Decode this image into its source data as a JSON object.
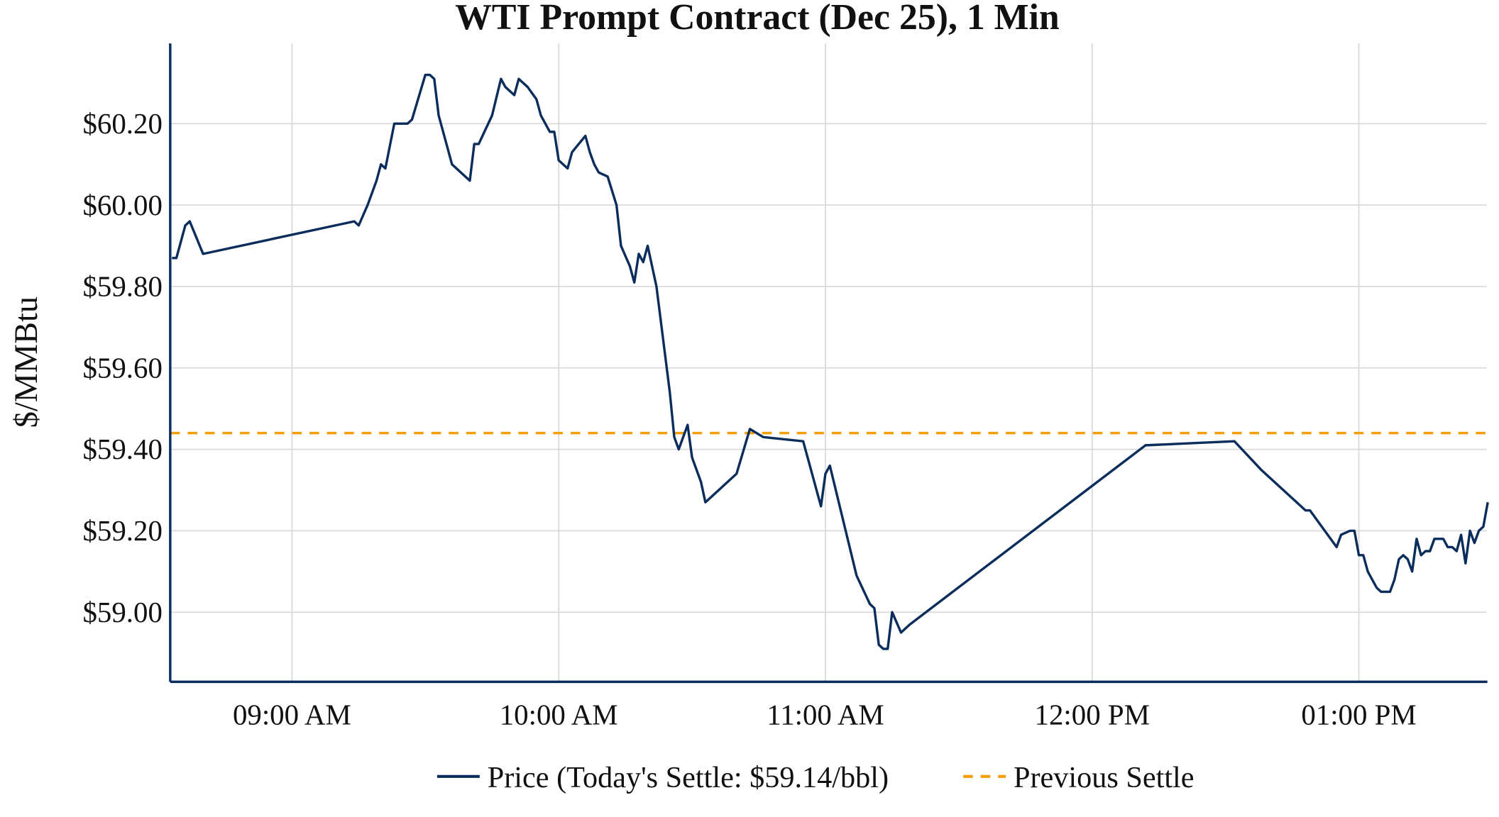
{
  "chart_data": {
    "type": "line",
    "title": "WTI Prompt Contract (Dec 25), 1 Min",
    "xlabel": "",
    "ylabel": "$/MMBtu",
    "x_range": [
      "08:33",
      "13:29"
    ],
    "ylim": [
      58.83,
      60.4
    ],
    "grid": true,
    "legend_placement": "bottom-center",
    "x_ticks": [
      {
        "time": "09:00",
        "label": "09:00 AM"
      },
      {
        "time": "10:00",
        "label": "10:00 AM"
      },
      {
        "time": "11:00",
        "label": "11:00 AM"
      },
      {
        "time": "12:00",
        "label": "12:00 PM"
      },
      {
        "time": "13:00",
        "label": "01:00 PM"
      }
    ],
    "y_ticks": [
      {
        "value": 59.0,
        "label": "$59.00"
      },
      {
        "value": 59.2,
        "label": "$59.20"
      },
      {
        "value": 59.4,
        "label": "$59.40"
      },
      {
        "value": 59.6,
        "label": "$59.60"
      },
      {
        "value": 59.8,
        "label": "$59.80"
      },
      {
        "value": 60.0,
        "label": "$60.00"
      },
      {
        "value": 60.2,
        "label": "$60.20"
      }
    ],
    "series": [
      {
        "name": "Price (Today's Settle: $59.14/bbl)",
        "color": "#0b2d5b",
        "style": "solid",
        "points": [
          [
            "08:33",
            59.87
          ],
          [
            "08:34",
            59.87
          ],
          [
            "08:36",
            59.95
          ],
          [
            "08:37",
            59.96
          ],
          [
            "08:40",
            59.88
          ],
          [
            "09:14",
            59.96
          ],
          [
            "09:15",
            59.95
          ],
          [
            "09:17",
            60.0
          ],
          [
            "09:19",
            60.06
          ],
          [
            "09:20",
            60.1
          ],
          [
            "09:21",
            60.09
          ],
          [
            "09:23",
            60.2
          ],
          [
            "09:26",
            60.2
          ],
          [
            "09:27",
            60.21
          ],
          [
            "09:30",
            60.32
          ],
          [
            "09:31",
            60.32
          ],
          [
            "09:32",
            60.31
          ],
          [
            "09:33",
            60.22
          ],
          [
            "09:36",
            60.1
          ],
          [
            "09:40",
            60.06
          ],
          [
            "09:41",
            60.15
          ],
          [
            "09:42",
            60.15
          ],
          [
            "09:45",
            60.22
          ],
          [
            "09:47",
            60.31
          ],
          [
            "09:48",
            60.29
          ],
          [
            "09:50",
            60.27
          ],
          [
            "09:51",
            60.31
          ],
          [
            "09:53",
            60.29
          ],
          [
            "09:55",
            60.26
          ],
          [
            "09:56",
            60.22
          ],
          [
            "09:58",
            60.18
          ],
          [
            "09:59",
            60.18
          ],
          [
            "10:00",
            60.11
          ],
          [
            "10:02",
            60.09
          ],
          [
            "10:03",
            60.13
          ],
          [
            "10:06",
            60.17
          ],
          [
            "10:07",
            60.13
          ],
          [
            "10:08",
            60.1
          ],
          [
            "10:09",
            60.08
          ],
          [
            "10:11",
            60.07
          ],
          [
            "10:13",
            60.0
          ],
          [
            "10:14",
            59.9
          ],
          [
            "10:16",
            59.85
          ],
          [
            "10:17",
            59.81
          ],
          [
            "10:18",
            59.88
          ],
          [
            "10:19",
            59.86
          ],
          [
            "10:20",
            59.9
          ],
          [
            "10:22",
            59.8
          ],
          [
            "10:25",
            59.54
          ],
          [
            "10:26",
            59.43
          ],
          [
            "10:27",
            59.4
          ],
          [
            "10:29",
            59.46
          ],
          [
            "10:30",
            59.38
          ],
          [
            "10:32",
            59.32
          ],
          [
            "10:33",
            59.27
          ],
          [
            "10:40",
            59.34
          ],
          [
            "10:43",
            59.45
          ],
          [
            "10:46",
            59.43
          ],
          [
            "10:55",
            59.42
          ],
          [
            "10:59",
            59.26
          ],
          [
            "11:00",
            59.34
          ],
          [
            "11:01",
            59.36
          ],
          [
            "11:07",
            59.09
          ],
          [
            "11:10",
            59.02
          ],
          [
            "11:11",
            59.01
          ],
          [
            "11:12",
            58.92
          ],
          [
            "11:13",
            58.91
          ],
          [
            "11:14",
            58.91
          ],
          [
            "11:15",
            59.0
          ],
          [
            "11:17",
            58.95
          ],
          [
            "11:19",
            58.97
          ],
          [
            "12:12",
            59.41
          ],
          [
            "12:32",
            59.42
          ],
          [
            "12:38",
            59.35
          ],
          [
            "12:48",
            59.25
          ],
          [
            "12:49",
            59.25
          ],
          [
            "12:55",
            59.16
          ],
          [
            "12:56",
            59.19
          ],
          [
            "12:58",
            59.2
          ],
          [
            "12:59",
            59.2
          ],
          [
            "13:00",
            59.14
          ],
          [
            "13:01",
            59.14
          ],
          [
            "13:02",
            59.1
          ],
          [
            "13:04",
            59.06
          ],
          [
            "13:05",
            59.05
          ],
          [
            "13:07",
            59.05
          ],
          [
            "13:08",
            59.08
          ],
          [
            "13:09",
            59.13
          ],
          [
            "13:10",
            59.14
          ],
          [
            "13:11",
            59.13
          ],
          [
            "13:12",
            59.1
          ],
          [
            "13:13",
            59.18
          ],
          [
            "13:14",
            59.14
          ],
          [
            "13:15",
            59.15
          ],
          [
            "13:16",
            59.15
          ],
          [
            "13:17",
            59.18
          ],
          [
            "13:19",
            59.18
          ],
          [
            "13:20",
            59.16
          ],
          [
            "13:21",
            59.16
          ],
          [
            "13:22",
            59.15
          ],
          [
            "13:23",
            59.19
          ],
          [
            "13:24",
            59.12
          ],
          [
            "13:25",
            59.2
          ],
          [
            "13:26",
            59.17
          ],
          [
            "13:27",
            59.2
          ],
          [
            "13:28",
            59.21
          ],
          [
            "13:29",
            59.27
          ]
        ]
      },
      {
        "name": "Previous Settle",
        "color": "#f59e0b",
        "style": "dashed",
        "value": 59.44
      }
    ]
  }
}
